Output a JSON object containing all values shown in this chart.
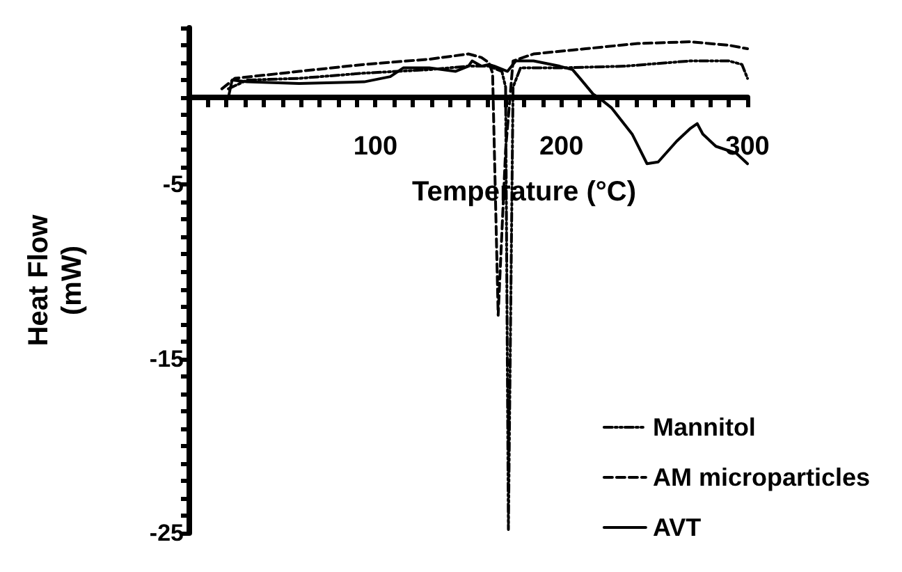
{
  "chart_data": {
    "type": "line",
    "xlabel": "Temperature (°C)",
    "ylabel": "Heat Flow\n(mW)",
    "xlim": [
      0,
      300
    ],
    "ylim": [
      -25,
      4
    ],
    "xticks": [
      {
        "value": 0,
        "label": null
      },
      {
        "value": 10,
        "label": null
      },
      {
        "value": 20,
        "label": null
      },
      {
        "value": 30,
        "label": null
      },
      {
        "value": 40,
        "label": null
      },
      {
        "value": 50,
        "label": null
      },
      {
        "value": 60,
        "label": null
      },
      {
        "value": 70,
        "label": null
      },
      {
        "value": 80,
        "label": null
      },
      {
        "value": 90,
        "label": null
      },
      100,
      {
        "value": 110,
        "label": null
      },
      {
        "value": 120,
        "label": null
      },
      {
        "value": 130,
        "label": null
      },
      {
        "value": 140,
        "label": null
      },
      {
        "value": 150,
        "label": null
      },
      {
        "value": 160,
        "label": null
      },
      {
        "value": 170,
        "label": null
      },
      {
        "value": 180,
        "label": null
      },
      {
        "value": 190,
        "label": null
      },
      200,
      {
        "value": 210,
        "label": null
      },
      {
        "value": 220,
        "label": null
      },
      {
        "value": 230,
        "label": null
      },
      {
        "value": 240,
        "label": null
      },
      {
        "value": 250,
        "label": null
      },
      {
        "value": 260,
        "label": null
      },
      {
        "value": 270,
        "label": null
      },
      {
        "value": 280,
        "label": null
      },
      {
        "value": 290,
        "label": null
      },
      300
    ],
    "yticks": [
      -25,
      {
        "value": -24,
        "label": null
      },
      {
        "value": -23,
        "label": null
      },
      {
        "value": -22,
        "label": null
      },
      {
        "value": -21,
        "label": null
      },
      {
        "value": -20,
        "label": null
      },
      {
        "value": -19,
        "label": null
      },
      {
        "value": -18,
        "label": null
      },
      {
        "value": -17,
        "label": null
      },
      {
        "value": -16,
        "label": null
      },
      -15,
      {
        "value": -14,
        "label": null
      },
      {
        "value": -13,
        "label": null
      },
      {
        "value": -12,
        "label": null
      },
      {
        "value": -11,
        "label": null
      },
      {
        "value": -10,
        "label": null
      },
      {
        "value": -9,
        "label": null
      },
      {
        "value": -8,
        "label": null
      },
      {
        "value": -7,
        "label": null
      },
      {
        "value": -6,
        "label": null
      },
      -5,
      {
        "value": -4,
        "label": null
      },
      {
        "value": -3,
        "label": null
      },
      {
        "value": -2,
        "label": null
      },
      {
        "value": -1,
        "label": null
      },
      {
        "value": 0,
        "label": null
      },
      {
        "value": 1,
        "label": null
      },
      {
        "value": 2,
        "label": null
      },
      {
        "value": 3,
        "label": null
      },
      {
        "value": 4,
        "label": null
      }
    ],
    "legend": "bottom right",
    "marker": "none",
    "series": [
      {
        "name": "Mannitol",
        "color": "#000000",
        "line_style": "dotted",
        "x": [
          21,
          31,
          59,
          94,
          129,
          150,
          161,
          168,
          170,
          171.5,
          174,
          178,
          199,
          234,
          269,
          290,
          297,
          300
        ],
        "values": [
          0.5,
          1,
          1.1,
          1.4,
          1.6,
          1.8,
          1.8,
          1.5,
          0.6,
          -24.8,
          0.6,
          1.7,
          1.7,
          1.8,
          2.1,
          2.1,
          1.9,
          1.1
        ]
      },
      {
        "name": "AM microparticles",
        "color": "#000000",
        "line_style": "dashed",
        "x": [
          17.5,
          24.5,
          59,
          94,
          129,
          150,
          157,
          161,
          163,
          166,
          170,
          174,
          185,
          213,
          241,
          269,
          290,
          300
        ],
        "values": [
          0.5,
          1.1,
          1.5,
          1.9,
          2.2,
          2.5,
          2.3,
          2,
          1.4,
          -12.5,
          -3,
          2.1,
          2.5,
          2.8,
          3.1,
          3.2,
          3,
          2.8
        ]
      },
      {
        "name": "AVT",
        "color": "#000000",
        "line_style": "solid",
        "x": [
          21,
          23,
          31,
          59,
          94,
          108,
          115,
          129,
          143,
          150,
          152,
          157,
          161,
          164,
          171,
          175.5,
          185,
          199,
          206,
          210,
          217,
          220,
          227,
          238,
          246,
          252,
          262,
          269,
          273,
          276,
          283,
          294,
          300
        ],
        "values": [
          0,
          1,
          0.9,
          0.8,
          0.9,
          1.2,
          1.7,
          1.7,
          1.5,
          1.8,
          2.1,
          1.8,
          1.9,
          1.8,
          1.5,
          2.1,
          2.1,
          1.8,
          1.6,
          1.1,
          0.2,
          0,
          -0.6,
          -2.1,
          -3.8,
          -3.7,
          -2.5,
          -1.8,
          -1.5,
          -2.1,
          -2.8,
          -3.2,
          -3.8
        ]
      }
    ]
  }
}
